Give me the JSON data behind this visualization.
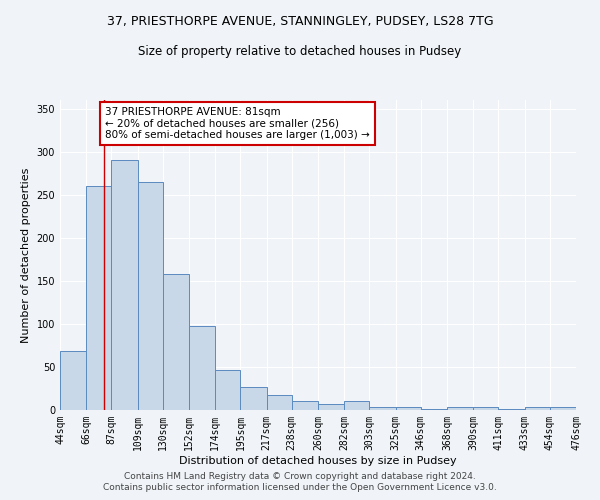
{
  "title1": "37, PRIESTHORPE AVENUE, STANNINGLEY, PUDSEY, LS28 7TG",
  "title2": "Size of property relative to detached houses in Pudsey",
  "xlabel": "Distribution of detached houses by size in Pudsey",
  "ylabel": "Number of detached properties",
  "bar_values": [
    68,
    260,
    290,
    265,
    158,
    98,
    47,
    27,
    17,
    10,
    7,
    10,
    4,
    3,
    1,
    4,
    3,
    1,
    4,
    3
  ],
  "bin_edges": [
    44,
    66,
    87,
    109,
    130,
    152,
    174,
    195,
    217,
    238,
    260,
    282,
    303,
    325,
    346,
    368,
    390,
    411,
    433,
    454,
    476
  ],
  "x_labels": [
    "44sqm",
    "66sqm",
    "87sqm",
    "109sqm",
    "130sqm",
    "152sqm",
    "174sqm",
    "195sqm",
    "217sqm",
    "238sqm",
    "260sqm",
    "282sqm",
    "303sqm",
    "325sqm",
    "346sqm",
    "368sqm",
    "390sqm",
    "411sqm",
    "433sqm",
    "454sqm",
    "476sqm"
  ],
  "bar_color": "#c8d8e8",
  "bar_edge_color": "#5a8abf",
  "property_line_x": 81,
  "property_line_color": "#cc0000",
  "annotation_text": "37 PRIESTHORPE AVENUE: 81sqm\n← 20% of detached houses are smaller (256)\n80% of semi-detached houses are larger (1,003) →",
  "annotation_box_color": "#ffffff",
  "annotation_box_edge_color": "#cc0000",
  "ylim": [
    0,
    360
  ],
  "yticks": [
    0,
    50,
    100,
    150,
    200,
    250,
    300,
    350
  ],
  "footer1": "Contains HM Land Registry data © Crown copyright and database right 2024.",
  "footer2": "Contains public sector information licensed under the Open Government Licence v3.0.",
  "background_color": "#f0f4f8",
  "grid_color": "#ffffff",
  "title1_fontsize": 9,
  "title2_fontsize": 8.5,
  "xlabel_fontsize": 8,
  "ylabel_fontsize": 8,
  "tick_fontsize": 7,
  "annotation_fontsize": 7.5,
  "footer_fontsize": 6.5
}
